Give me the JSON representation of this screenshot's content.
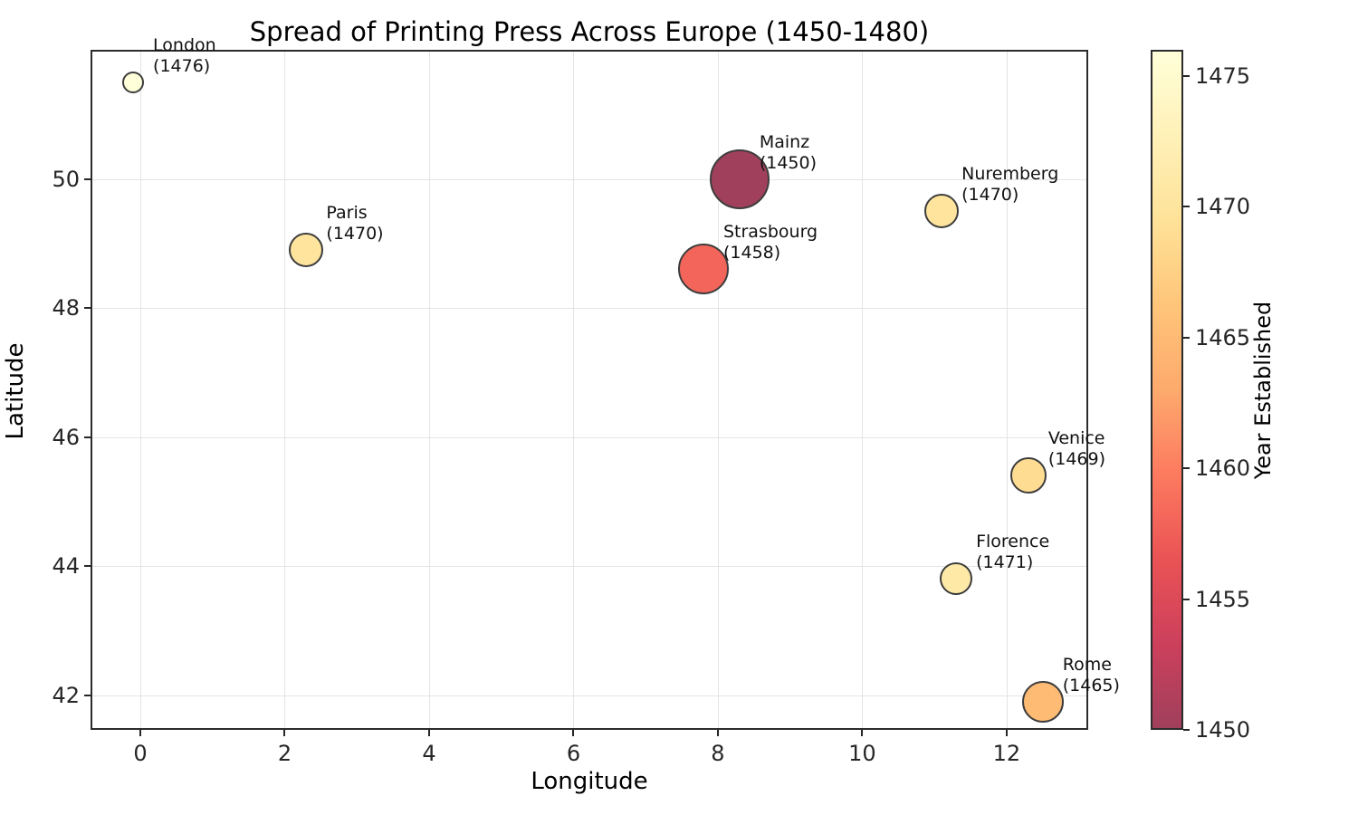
{
  "chart_data": {
    "type": "scatter",
    "title": "Spread of Printing Press Across Europe (1450-1480)",
    "xlabel": "Longitude",
    "ylabel": "Latitude",
    "xlim": [
      -0.69,
      13.13
    ],
    "ylim": [
      41.46,
      52.0
    ],
    "xticks": [
      0,
      2,
      4,
      6,
      8,
      10,
      12
    ],
    "yticks": [
      42,
      44,
      46,
      48,
      50
    ],
    "grid": true,
    "grid_color": "#e4e4e4",
    "marker_edge_color": "#3d3d3d",
    "points": [
      {
        "city": "London",
        "year": 1476,
        "lon": -0.1,
        "lat": 51.5,
        "color": "#ffffd9",
        "radius": 12
      },
      {
        "city": "Mainz",
        "year": 1450,
        "lon": 8.3,
        "lat": 50.0,
        "color": "#a0405c",
        "radius": 33
      },
      {
        "city": "Nuremberg",
        "year": 1470,
        "lon": 11.1,
        "lat": 49.5,
        "color": "#fee49d",
        "radius": 19
      },
      {
        "city": "Paris",
        "year": 1470,
        "lon": 2.3,
        "lat": 48.9,
        "color": "#fee49d",
        "radius": 19
      },
      {
        "city": "Strasbourg",
        "year": 1458,
        "lon": 7.8,
        "lat": 48.6,
        "color": "#f3655a",
        "radius": 28
      },
      {
        "city": "Venice",
        "year": 1469,
        "lon": 12.3,
        "lat": 45.4,
        "color": "#fedd93",
        "radius": 20
      },
      {
        "city": "Florence",
        "year": 1471,
        "lon": 11.3,
        "lat": 43.8,
        "color": "#fee9a7",
        "radius": 18
      },
      {
        "city": "Rome",
        "year": 1465,
        "lon": 12.5,
        "lat": 41.9,
        "color": "#febb74",
        "radius": 23
      }
    ],
    "colorbar": {
      "label": "Year Established",
      "vmin": 1450,
      "vmax": 1476,
      "ticks": [
        1450,
        1455,
        1460,
        1465,
        1470,
        1475
      ],
      "gradient_top_to_bottom": [
        "#ffffd9",
        "#fff1b8",
        "#fee298",
        "#fec579",
        "#fdaa6d",
        "#fd7a5f",
        "#ea5355",
        "#cd405c",
        "#a0405c"
      ]
    }
  }
}
